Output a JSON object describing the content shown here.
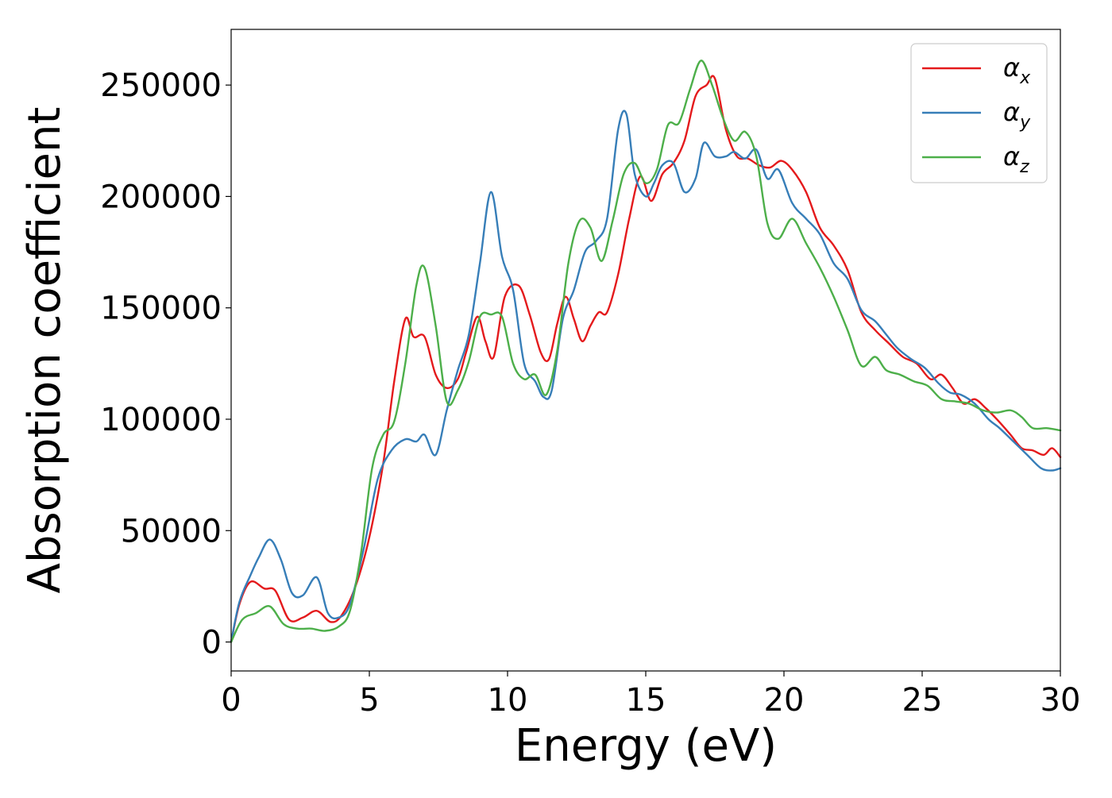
{
  "chart_data": {
    "type": "line",
    "title": "",
    "xlabel": "Energy (eV)",
    "ylabel": "Absorption coefficient",
    "xlim": [
      0,
      30
    ],
    "ylim": [
      -13000,
      275000
    ],
    "xticks": [
      0,
      5,
      10,
      15,
      20,
      25,
      30
    ],
    "xtick_labels": [
      "0",
      "5",
      "10",
      "15",
      "20",
      "25",
      "30"
    ],
    "yticks": [
      0,
      50000,
      100000,
      150000,
      200000,
      250000
    ],
    "ytick_labels": [
      "0",
      "50000",
      "100000",
      "150000",
      "200000",
      "250000"
    ],
    "grid": false,
    "legend_position": "upper-right",
    "series": [
      {
        "name": "αx",
        "legend_base": "α",
        "legend_sub": "x",
        "color": "#e41a1c",
        "points": [
          [
            0,
            0
          ],
          [
            0.3,
            17000
          ],
          [
            0.7,
            27000
          ],
          [
            1.2,
            24000
          ],
          [
            1.6,
            23000
          ],
          [
            2.1,
            10000
          ],
          [
            2.6,
            11000
          ],
          [
            3.1,
            14000
          ],
          [
            3.6,
            9000
          ],
          [
            4.0,
            12000
          ],
          [
            4.5,
            25000
          ],
          [
            5.0,
            47000
          ],
          [
            5.5,
            80000
          ],
          [
            5.9,
            117000
          ],
          [
            6.3,
            145000
          ],
          [
            6.6,
            137000
          ],
          [
            7.0,
            137000
          ],
          [
            7.4,
            120000
          ],
          [
            7.8,
            114000
          ],
          [
            8.2,
            118000
          ],
          [
            8.5,
            130000
          ],
          [
            8.9,
            146000
          ],
          [
            9.2,
            135000
          ],
          [
            9.5,
            128000
          ],
          [
            9.9,
            155000
          ],
          [
            10.4,
            160000
          ],
          [
            10.8,
            147000
          ],
          [
            11.2,
            130000
          ],
          [
            11.5,
            127000
          ],
          [
            11.8,
            143000
          ],
          [
            12.1,
            155000
          ],
          [
            12.4,
            145000
          ],
          [
            12.7,
            135000
          ],
          [
            13.0,
            142000
          ],
          [
            13.3,
            148000
          ],
          [
            13.6,
            148000
          ],
          [
            14.0,
            165000
          ],
          [
            14.4,
            190000
          ],
          [
            14.8,
            209000
          ],
          [
            15.2,
            198000
          ],
          [
            15.6,
            210000
          ],
          [
            16.0,
            215000
          ],
          [
            16.4,
            225000
          ],
          [
            16.8,
            245000
          ],
          [
            17.2,
            250000
          ],
          [
            17.5,
            253000
          ],
          [
            17.9,
            230000
          ],
          [
            18.3,
            218000
          ],
          [
            18.7,
            217000
          ],
          [
            19.1,
            214000
          ],
          [
            19.5,
            213000
          ],
          [
            19.9,
            216000
          ],
          [
            20.3,
            212000
          ],
          [
            20.8,
            202000
          ],
          [
            21.3,
            186000
          ],
          [
            21.8,
            178000
          ],
          [
            22.3,
            167000
          ],
          [
            22.8,
            148000
          ],
          [
            23.3,
            140000
          ],
          [
            23.8,
            134000
          ],
          [
            24.3,
            128000
          ],
          [
            24.8,
            125000
          ],
          [
            25.3,
            118000
          ],
          [
            25.7,
            120000
          ],
          [
            26.1,
            114000
          ],
          [
            26.5,
            107000
          ],
          [
            26.9,
            109000
          ],
          [
            27.3,
            105000
          ],
          [
            27.7,
            100000
          ],
          [
            28.2,
            93000
          ],
          [
            28.6,
            87000
          ],
          [
            29.0,
            86000
          ],
          [
            29.4,
            84000
          ],
          [
            29.7,
            87000
          ],
          [
            30.0,
            83000
          ]
        ]
      },
      {
        "name": "αy",
        "legend_base": "α",
        "legend_sub": "y",
        "color": "#377eb8",
        "points": [
          [
            0,
            0
          ],
          [
            0.3,
            18000
          ],
          [
            0.7,
            30000
          ],
          [
            1.0,
            38000
          ],
          [
            1.4,
            46000
          ],
          [
            1.8,
            37000
          ],
          [
            2.2,
            22000
          ],
          [
            2.6,
            21000
          ],
          [
            3.1,
            29000
          ],
          [
            3.5,
            13000
          ],
          [
            3.9,
            11000
          ],
          [
            4.3,
            17000
          ],
          [
            4.8,
            42000
          ],
          [
            5.3,
            73000
          ],
          [
            5.8,
            86000
          ],
          [
            6.3,
            91000
          ],
          [
            6.7,
            90000
          ],
          [
            7.0,
            93000
          ],
          [
            7.4,
            84000
          ],
          [
            7.8,
            104000
          ],
          [
            8.2,
            122000
          ],
          [
            8.6,
            138000
          ],
          [
            9.0,
            170000
          ],
          [
            9.4,
            202000
          ],
          [
            9.8,
            173000
          ],
          [
            10.2,
            158000
          ],
          [
            10.6,
            125000
          ],
          [
            11.0,
            117000
          ],
          [
            11.3,
            110000
          ],
          [
            11.6,
            113000
          ],
          [
            12.0,
            145000
          ],
          [
            12.4,
            158000
          ],
          [
            12.8,
            175000
          ],
          [
            13.2,
            180000
          ],
          [
            13.6,
            190000
          ],
          [
            14.0,
            230000
          ],
          [
            14.3,
            237000
          ],
          [
            14.6,
            210000
          ],
          [
            15.0,
            200000
          ],
          [
            15.3,
            206000
          ],
          [
            15.6,
            214000
          ],
          [
            16.0,
            215000
          ],
          [
            16.4,
            202000
          ],
          [
            16.8,
            208000
          ],
          [
            17.1,
            224000
          ],
          [
            17.5,
            218000
          ],
          [
            17.9,
            218000
          ],
          [
            18.2,
            220000
          ],
          [
            18.6,
            217000
          ],
          [
            19.0,
            221000
          ],
          [
            19.4,
            208000
          ],
          [
            19.8,
            212000
          ],
          [
            20.3,
            197000
          ],
          [
            20.8,
            190000
          ],
          [
            21.3,
            183000
          ],
          [
            21.8,
            170000
          ],
          [
            22.3,
            163000
          ],
          [
            22.8,
            149000
          ],
          [
            23.3,
            144000
          ],
          [
            23.7,
            138000
          ],
          [
            24.1,
            132000
          ],
          [
            24.6,
            127000
          ],
          [
            25.1,
            123000
          ],
          [
            25.6,
            116000
          ],
          [
            26.0,
            112000
          ],
          [
            26.4,
            111000
          ],
          [
            26.9,
            107000
          ],
          [
            27.4,
            100000
          ],
          [
            27.8,
            96000
          ],
          [
            28.3,
            90000
          ],
          [
            28.8,
            84000
          ],
          [
            29.3,
            78000
          ],
          [
            29.7,
            77000
          ],
          [
            30.0,
            78000
          ]
        ]
      },
      {
        "name": "αz",
        "legend_base": "α",
        "legend_sub": "z",
        "color": "#4daf4a",
        "points": [
          [
            0,
            0
          ],
          [
            0.4,
            10000
          ],
          [
            0.9,
            13000
          ],
          [
            1.4,
            16000
          ],
          [
            1.9,
            8000
          ],
          [
            2.4,
            6000
          ],
          [
            2.9,
            6000
          ],
          [
            3.4,
            5000
          ],
          [
            3.9,
            7000
          ],
          [
            4.3,
            14000
          ],
          [
            4.7,
            40000
          ],
          [
            5.1,
            78000
          ],
          [
            5.5,
            93000
          ],
          [
            5.9,
            99000
          ],
          [
            6.3,
            125000
          ],
          [
            6.7,
            160000
          ],
          [
            7.0,
            168000
          ],
          [
            7.4,
            142000
          ],
          [
            7.8,
            108000
          ],
          [
            8.2,
            113000
          ],
          [
            8.6,
            126000
          ],
          [
            9.0,
            146000
          ],
          [
            9.4,
            147000
          ],
          [
            9.8,
            146000
          ],
          [
            10.2,
            125000
          ],
          [
            10.6,
            118000
          ],
          [
            11.0,
            120000
          ],
          [
            11.4,
            111000
          ],
          [
            11.8,
            131000
          ],
          [
            12.2,
            170000
          ],
          [
            12.6,
            189000
          ],
          [
            13.0,
            186000
          ],
          [
            13.4,
            171000
          ],
          [
            13.8,
            189000
          ],
          [
            14.2,
            210000
          ],
          [
            14.6,
            215000
          ],
          [
            15.0,
            206000
          ],
          [
            15.4,
            212000
          ],
          [
            15.8,
            232000
          ],
          [
            16.2,
            233000
          ],
          [
            16.6,
            248000
          ],
          [
            17.0,
            261000
          ],
          [
            17.4,
            250000
          ],
          [
            17.8,
            235000
          ],
          [
            18.2,
            225000
          ],
          [
            18.6,
            229000
          ],
          [
            19.0,
            218000
          ],
          [
            19.4,
            188000
          ],
          [
            19.8,
            181000
          ],
          [
            20.3,
            190000
          ],
          [
            20.8,
            179000
          ],
          [
            21.3,
            168000
          ],
          [
            21.8,
            155000
          ],
          [
            22.3,
            140000
          ],
          [
            22.8,
            124000
          ],
          [
            23.3,
            128000
          ],
          [
            23.7,
            122000
          ],
          [
            24.2,
            120000
          ],
          [
            24.7,
            117000
          ],
          [
            25.2,
            115000
          ],
          [
            25.7,
            109000
          ],
          [
            26.2,
            108000
          ],
          [
            26.7,
            107000
          ],
          [
            27.2,
            104000
          ],
          [
            27.7,
            103000
          ],
          [
            28.2,
            104000
          ],
          [
            28.6,
            101000
          ],
          [
            29.0,
            96000
          ],
          [
            29.5,
            96000
          ],
          [
            30.0,
            95000
          ]
        ]
      }
    ]
  }
}
